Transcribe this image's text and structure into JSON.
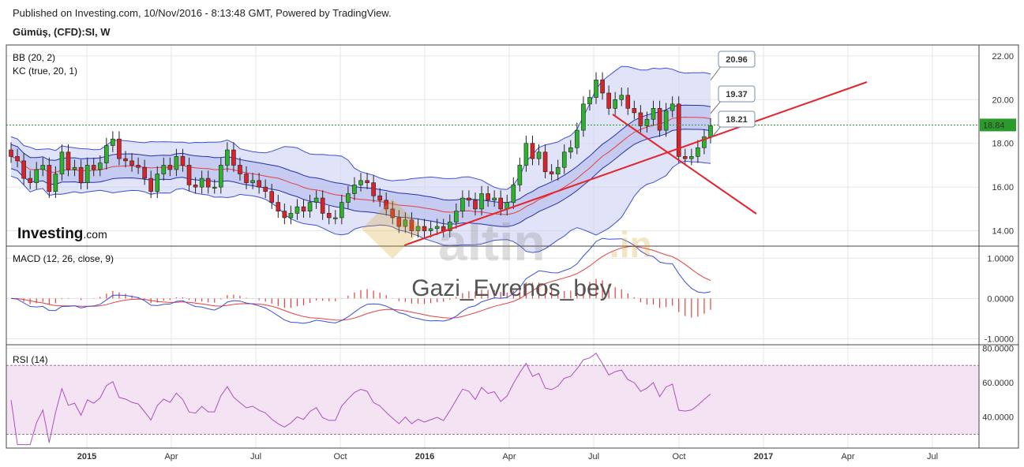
{
  "header": {
    "published": "Published on Investing.com, 10/Nov/2016 - 8:13:48 GMT, Powered by TradingView.",
    "symbol": "Gümüş, (CFD):SI, W"
  },
  "brand": {
    "logo_bold": "Investing",
    "logo_light": ".com"
  },
  "watermark": {
    "text": "altin",
    "suffix": ".in",
    "author": "Gazi_Evrenos_bey"
  },
  "colors": {
    "up": "#2db22d",
    "down": "#d9232a",
    "band": "#3f4fd8",
    "kc": "#2230b0",
    "trend": "#e5232a",
    "macd": "#3b4fd8",
    "signal": "#e34040",
    "rsi": "#b04fc0",
    "price_line": "#2a9a2a"
  },
  "chart_data": [
    {
      "type": "candlestick",
      "title": "Gümüş, (CFD):SI, W",
      "indicators": [
        "BB (20, 2)",
        "KC (true, 20, 1)"
      ],
      "x_ticks": [
        "2015",
        "Apr",
        "Jul",
        "Oct",
        "2016",
        "Apr",
        "Jul",
        "Oct",
        "2017",
        "Apr",
        "Jul"
      ],
      "y_ticks": [
        "22.00",
        "20.00",
        "18.00",
        "16.00",
        "14.00"
      ],
      "ylim": [
        13.3,
        22.5
      ],
      "last_price": "18.84",
      "callouts": [
        "20.96",
        "19.37",
        "18.21"
      ],
      "close": [
        17.4,
        17.2,
        16.4,
        16.2,
        16.8,
        17.0,
        15.8,
        16.6,
        17.6,
        16.8,
        16.9,
        16.2,
        17.0,
        16.8,
        17.1,
        17.9,
        18.2,
        17.3,
        17.2,
        17.0,
        16.9,
        16.4,
        15.8,
        16.6,
        17.0,
        16.8,
        17.4,
        17.0,
        16.1,
        16.0,
        16.4,
        16.0,
        16.0,
        17.0,
        17.7,
        17.0,
        16.6,
        16.2,
        16.3,
        16.0,
        15.8,
        15.3,
        14.9,
        14.6,
        14.8,
        15.1,
        14.9,
        15.3,
        15.5,
        14.8,
        14.6,
        14.6,
        15.3,
        15.7,
        16.1,
        16.3,
        16.2,
        15.6,
        15.4,
        15.0,
        14.6,
        14.2,
        14.5,
        14.0,
        14.2,
        14.0,
        14.1,
        14.2,
        14.0,
        14.4,
        14.9,
        15.5,
        15.4,
        15.0,
        15.7,
        15.4,
        15.5,
        15.0,
        15.3,
        16.1,
        17.0,
        18.0,
        17.3,
        17.6,
        16.7,
        16.6,
        16.9,
        17.6,
        17.8,
        18.6,
        19.8,
        20.1,
        20.9,
        20.3,
        19.6,
        20.0,
        20.2,
        19.6,
        19.4,
        18.8,
        19.1,
        19.6,
        18.6,
        19.5,
        19.8,
        17.4,
        17.3,
        17.4,
        17.8,
        18.3,
        18.8
      ],
      "bb_upper_at_end": 20.96,
      "bb_mid_at_end": 19.37,
      "bb_lower_at_end": 18.21
    },
    {
      "type": "line",
      "title": "MACD (12, 26, close, 9)",
      "y_ticks": [
        "1.0000",
        "0.0000",
        "-1.0000"
      ],
      "ylim": [
        -1.15,
        1.3
      ]
    },
    {
      "type": "line",
      "title": "RSI (14)",
      "y_ticks": [
        "80.0000",
        "60.0000",
        "40.0000"
      ],
      "ylim": [
        22,
        82
      ],
      "band": [
        30,
        70
      ]
    }
  ]
}
